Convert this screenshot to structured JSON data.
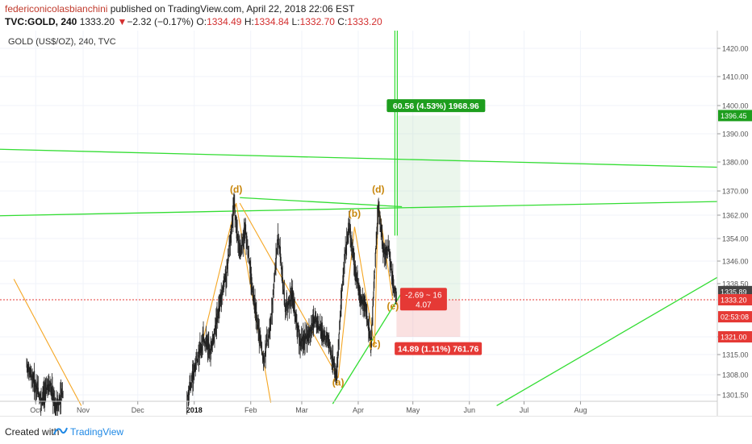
{
  "header": {
    "author": "federiconicolasbianchini",
    "published": " published on TradingView.com, April 22, 2018 22:06 EST",
    "symbol": "TVC:GOLD, 240",
    "last": "1333.20",
    "change_arrow": "▼",
    "change": "−2.32 (−0.17%)",
    "open_label": "O:",
    "open": "1334.49",
    "high_label": "H:",
    "high": "1334.84",
    "low_label": "L:",
    "low": "1332.70",
    "close_label": "C:",
    "close": "1333.20"
  },
  "footer": {
    "created": "Created with",
    "brand": "TradingView"
  },
  "colors": {
    "up": "#26a69a",
    "down": "#ef5350",
    "candle": "#222222",
    "green_line": "#33dd33",
    "orange_line": "#f5a623",
    "wave_label": "#c8860a",
    "profit": "#1e9e1e",
    "loss": "#e53935"
  },
  "chart_data": {
    "type": "candlestick",
    "title": "GOLD (US$/OZ), 240, TVC",
    "y_ticks": [
      1301.5,
      1308.0,
      1315.0,
      1321.0,
      1338.5,
      1346.0,
      1354.0,
      1362.0,
      1370.0,
      1380.0,
      1390.0,
      1400.0,
      1410.0,
      1420.0
    ],
    "x_tick_labels": [
      "Oct",
      "Nov",
      "Dec",
      "2018",
      "Feb",
      "Mar",
      "Apr",
      "May",
      "Jun",
      "Jul",
      "Aug"
    ],
    "last_price": "1333.20",
    "price_badges": [
      {
        "label": "1396.45",
        "price": 1396.45,
        "color": "#1e9e1e"
      },
      {
        "label": "1335.89",
        "price": 1335.89,
        "color": "#444444"
      },
      {
        "label": "1333.20",
        "price": 1333.2,
        "color": "#e53935"
      },
      {
        "label": "02:53:08",
        "price": 1327.6,
        "color": "#e53935"
      },
      {
        "label": "1321.00",
        "price": 1321.0,
        "color": "#e53935"
      }
    ],
    "wave_labels": [
      {
        "label": "(d)",
        "date": "2018-01-24",
        "price": 1369.5
      },
      {
        "label": "(b)",
        "date": "2018-03-30",
        "price": 1361.5
      },
      {
        "label": "(d)",
        "date": "2018-04-12",
        "price": 1369.5
      },
      {
        "label": "(a)",
        "date": "2018-03-21",
        "price": 1304.5
      },
      {
        "label": "(c)",
        "date": "2018-04-10",
        "price": 1317.5
      },
      {
        "label": "(e)",
        "date": "2018-04-20",
        "price": 1330.0
      }
    ],
    "projection": {
      "profit_text": "60.56 (4.53%) 1968.96",
      "loss_text": "14.89 (1.11%) 761.76",
      "info_line1": "-2.69 ~ 16",
      "info_line2": "4.07"
    },
    "candles_path_points": [
      [
        "2017-10-01",
        1311
      ],
      [
        "2017-10-05",
        1306
      ],
      [
        "2017-10-09",
        1300
      ],
      [
        "2017-10-14",
        1305
      ],
      [
        "2017-10-17",
        1297
      ],
      [
        "2017-10-21",
        1302
      ],
      [
        "2017-12-28",
        1300
      ],
      [
        "2018-01-02",
        1312
      ],
      [
        "2018-01-06",
        1320
      ],
      [
        "2018-01-10",
        1316
      ],
      [
        "2018-01-15",
        1332
      ],
      [
        "2018-01-19",
        1343
      ],
      [
        "2018-01-23",
        1366
      ],
      [
        "2018-01-26",
        1348
      ],
      [
        "2018-01-29",
        1357
      ],
      [
        "2018-02-02",
        1336
      ],
      [
        "2018-02-08",
        1313
      ],
      [
        "2018-02-12",
        1325
      ],
      [
        "2018-02-16",
        1355
      ],
      [
        "2018-02-20",
        1331
      ],
      [
        "2018-02-24",
        1334
      ],
      [
        "2018-02-28",
        1319
      ],
      [
        "2018-03-04",
        1321
      ],
      [
        "2018-03-08",
        1327
      ],
      [
        "2018-03-12",
        1323
      ],
      [
        "2018-03-16",
        1319
      ],
      [
        "2018-03-20",
        1307
      ],
      [
        "2018-03-24",
        1344
      ],
      [
        "2018-03-27",
        1358
      ],
      [
        "2018-03-30",
        1344
      ],
      [
        "2018-04-02",
        1334
      ],
      [
        "2018-04-05",
        1331
      ],
      [
        "2018-04-08",
        1318
      ],
      [
        "2018-04-10",
        1341
      ],
      [
        "2018-04-12",
        1365
      ],
      [
        "2018-04-15",
        1349
      ],
      [
        "2018-04-18",
        1350
      ],
      [
        "2018-04-20",
        1339
      ],
      [
        "2018-04-22",
        1333.2
      ]
    ]
  }
}
